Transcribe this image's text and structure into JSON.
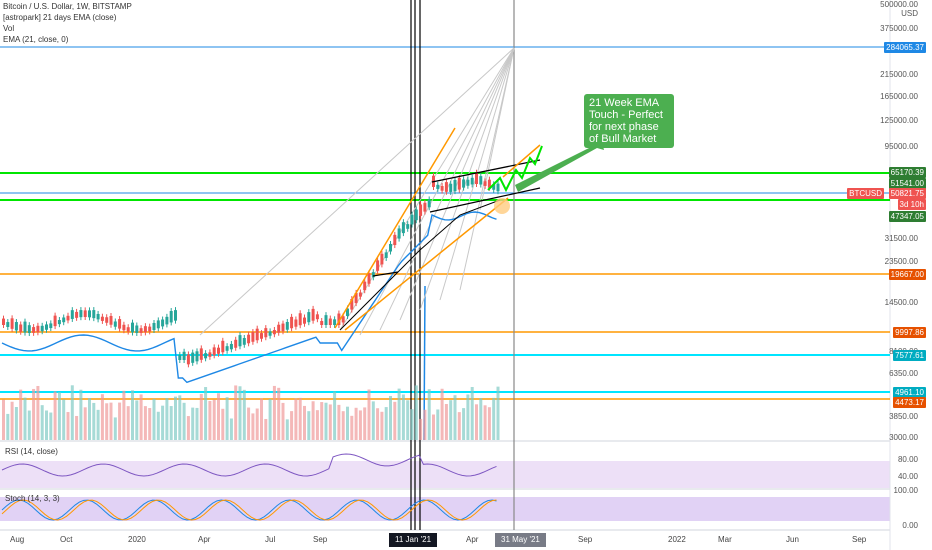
{
  "legend": {
    "title": "Bitcoin / U.S. Dollar, 1W, BITSTAMP",
    "indicator1": "[astropark] 21 days EMA (close)",
    "indicator2": "Vol",
    "indicator3": "EMA (21, close, 0)"
  },
  "price_axis": {
    "top_label": "500000.00",
    "currency": "USD",
    "ticks": [
      "375000.00",
      "215000.00",
      "165000.00",
      "125000.00",
      "95000.00",
      "31500.00",
      "23500.00",
      "14500.00",
      "8100.00",
      "6350.00",
      "3850.00",
      "3000.00"
    ],
    "price_labels": [
      {
        "text": "284065.37",
        "color": "#1e88e5"
      },
      {
        "text": "65170.39",
        "color": "#2e7d32"
      },
      {
        "text": "51541.00",
        "color": "#2e7d32"
      },
      {
        "text": "BTCUSD",
        "color": "#ef5350"
      },
      {
        "text": "50821.75",
        "color": "#ef5350"
      },
      {
        "text": "3d 10h",
        "color": "#ef5350"
      },
      {
        "text": "47347.05",
        "color": "#2e7d32"
      },
      {
        "text": "19667.00",
        "color": "#e65100"
      },
      {
        "text": "9997.86",
        "color": "#e65100"
      },
      {
        "text": "7577.61",
        "color": "#00acc1"
      },
      {
        "text": "4961.10",
        "color": "#00acc1"
      },
      {
        "text": "4473.17",
        "color": "#e65100"
      }
    ]
  },
  "callout": {
    "text": "21 Week EMA Touch - Perfect for next phase of Bull Market"
  },
  "rsi": {
    "label": "RSI (14, close)",
    "ticks": [
      "80.00",
      "40.00"
    ]
  },
  "stoch": {
    "label": "Stoch (14, 3, 3)",
    "ticks": [
      "100.00",
      "0.00"
    ]
  },
  "time_axis": {
    "ticks": [
      "Aug",
      "Oct",
      "2020",
      "Apr",
      "Jul",
      "Sep",
      "Apr",
      "Sep",
      "2022",
      "Mar",
      "Jun",
      "Sep"
    ],
    "highlight1": "11 Jan '21",
    "highlight2": "31 May '21"
  },
  "colors": {
    "green": "#00e600",
    "orange": "#ff9800",
    "blue": "#1e88e5",
    "cyan": "#00e5ff",
    "up": "#26a69a",
    "down": "#ef5350"
  }
}
